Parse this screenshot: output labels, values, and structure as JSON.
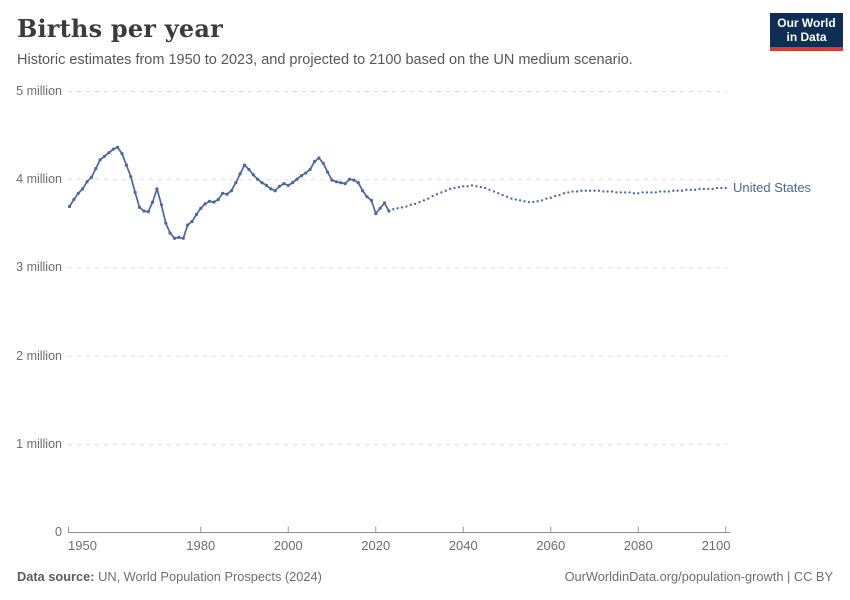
{
  "header": {
    "title": "Births per year",
    "subtitle": "Historic estimates from 1950 to 2023, and projected to 2100 based on the UN medium scenario."
  },
  "logo": {
    "line1": "Our World",
    "line2": "in Data",
    "bg_color": "#0e2e55",
    "accent_color": "#de3a31"
  },
  "chart_data": {
    "type": "line",
    "title": "Births per year",
    "entity": "United States",
    "entity_label": "United States",
    "units": "births per year (millions)",
    "xlim": [
      1950,
      2100
    ],
    "ylim_millions": [
      0,
      5
    ],
    "grid": "horizontal-dashed",
    "legend_position": "right-of-line",
    "y_ticks": [
      {
        "value": 0,
        "label": "0"
      },
      {
        "value": 1,
        "label": "1 million"
      },
      {
        "value": 2,
        "label": "2 million"
      },
      {
        "value": 3,
        "label": "3 million"
      },
      {
        "value": 4,
        "label": "4 million"
      },
      {
        "value": 5,
        "label": "5 million"
      }
    ],
    "x_ticks": [
      {
        "year": 1950,
        "label": "1950",
        "align": "start"
      },
      {
        "year": 1980,
        "label": "1980",
        "align": "middle"
      },
      {
        "year": 2000,
        "label": "2000",
        "align": "middle"
      },
      {
        "year": 2020,
        "label": "2020",
        "align": "middle"
      },
      {
        "year": 2040,
        "label": "2040",
        "align": "middle"
      },
      {
        "year": 2060,
        "label": "2060",
        "align": "middle"
      },
      {
        "year": 2080,
        "label": "2080",
        "align": "middle"
      },
      {
        "year": 2100,
        "label": "2100",
        "align": "end"
      }
    ],
    "series": [
      {
        "name": "United States — historic estimates (1950–2023)",
        "style": "solid-with-markers",
        "color": "#4a67a3",
        "points": [
          [
            1950,
            3.69
          ],
          [
            1951,
            3.77
          ],
          [
            1952,
            3.84
          ],
          [
            1953,
            3.89
          ],
          [
            1954,
            3.97
          ],
          [
            1955,
            4.02
          ],
          [
            1956,
            4.12
          ],
          [
            1957,
            4.22
          ],
          [
            1958,
            4.26
          ],
          [
            1959,
            4.3
          ],
          [
            1960,
            4.34
          ],
          [
            1961,
            4.36
          ],
          [
            1962,
            4.29
          ],
          [
            1963,
            4.16
          ],
          [
            1964,
            4.03
          ],
          [
            1965,
            3.85
          ],
          [
            1966,
            3.68
          ],
          [
            1967,
            3.64
          ],
          [
            1968,
            3.63
          ],
          [
            1969,
            3.74
          ],
          [
            1970,
            3.89
          ],
          [
            1971,
            3.71
          ],
          [
            1972,
            3.5
          ],
          [
            1973,
            3.39
          ],
          [
            1974,
            3.33
          ],
          [
            1975,
            3.34
          ],
          [
            1976,
            3.33
          ],
          [
            1977,
            3.48
          ],
          [
            1978,
            3.52
          ],
          [
            1979,
            3.6
          ],
          [
            1980,
            3.67
          ],
          [
            1981,
            3.72
          ],
          [
            1982,
            3.75
          ],
          [
            1983,
            3.74
          ],
          [
            1984,
            3.77
          ],
          [
            1985,
            3.84
          ],
          [
            1986,
            3.83
          ],
          [
            1987,
            3.87
          ],
          [
            1988,
            3.96
          ],
          [
            1989,
            4.06
          ],
          [
            1990,
            4.16
          ],
          [
            1991,
            4.11
          ],
          [
            1992,
            4.05
          ],
          [
            1993,
            4.0
          ],
          [
            1994,
            3.96
          ],
          [
            1995,
            3.93
          ],
          [
            1996,
            3.89
          ],
          [
            1997,
            3.87
          ],
          [
            1998,
            3.92
          ],
          [
            1999,
            3.95
          ],
          [
            2000,
            3.93
          ],
          [
            2001,
            3.96
          ],
          [
            2002,
            4.0
          ],
          [
            2003,
            4.04
          ],
          [
            2004,
            4.07
          ],
          [
            2005,
            4.11
          ],
          [
            2006,
            4.2
          ],
          [
            2007,
            4.24
          ],
          [
            2008,
            4.18
          ],
          [
            2009,
            4.08
          ],
          [
            2010,
            3.99
          ],
          [
            2011,
            3.97
          ],
          [
            2012,
            3.96
          ],
          [
            2013,
            3.95
          ],
          [
            2014,
            4.0
          ],
          [
            2015,
            3.99
          ],
          [
            2016,
            3.96
          ],
          [
            2017,
            3.87
          ],
          [
            2018,
            3.8
          ],
          [
            2019,
            3.76
          ],
          [
            2020,
            3.61
          ],
          [
            2021,
            3.67
          ],
          [
            2022,
            3.73
          ],
          [
            2023,
            3.64
          ]
        ]
      },
      {
        "name": "United States — UN medium scenario projection (2024–2100)",
        "style": "dotted",
        "color": "#4a67a3",
        "points": [
          [
            2023,
            3.64
          ],
          [
            2024,
            3.66
          ],
          [
            2025,
            3.67
          ],
          [
            2026,
            3.68
          ],
          [
            2027,
            3.69
          ],
          [
            2028,
            3.71
          ],
          [
            2029,
            3.72
          ],
          [
            2030,
            3.74
          ],
          [
            2031,
            3.76
          ],
          [
            2032,
            3.78
          ],
          [
            2033,
            3.81
          ],
          [
            2034,
            3.83
          ],
          [
            2035,
            3.85
          ],
          [
            2036,
            3.87
          ],
          [
            2037,
            3.89
          ],
          [
            2038,
            3.9
          ],
          [
            2039,
            3.91
          ],
          [
            2040,
            3.92
          ],
          [
            2041,
            3.92
          ],
          [
            2042,
            3.93
          ],
          [
            2043,
            3.92
          ],
          [
            2044,
            3.91
          ],
          [
            2045,
            3.9
          ],
          [
            2046,
            3.88
          ],
          [
            2047,
            3.86
          ],
          [
            2048,
            3.84
          ],
          [
            2049,
            3.82
          ],
          [
            2050,
            3.8
          ],
          [
            2051,
            3.78
          ],
          [
            2052,
            3.77
          ],
          [
            2053,
            3.76
          ],
          [
            2054,
            3.75
          ],
          [
            2055,
            3.74
          ],
          [
            2056,
            3.74
          ],
          [
            2057,
            3.75
          ],
          [
            2058,
            3.76
          ],
          [
            2059,
            3.78
          ],
          [
            2060,
            3.79
          ],
          [
            2061,
            3.81
          ],
          [
            2062,
            3.82
          ],
          [
            2063,
            3.84
          ],
          [
            2064,
            3.85
          ],
          [
            2065,
            3.86
          ],
          [
            2066,
            3.86
          ],
          [
            2067,
            3.87
          ],
          [
            2068,
            3.87
          ],
          [
            2069,
            3.87
          ],
          [
            2070,
            3.87
          ],
          [
            2071,
            3.87
          ],
          [
            2072,
            3.86
          ],
          [
            2073,
            3.86
          ],
          [
            2074,
            3.86
          ],
          [
            2075,
            3.85
          ],
          [
            2076,
            3.85
          ],
          [
            2077,
            3.85
          ],
          [
            2078,
            3.85
          ],
          [
            2079,
            3.84
          ],
          [
            2080,
            3.84
          ],
          [
            2081,
            3.85
          ],
          [
            2082,
            3.85
          ],
          [
            2083,
            3.85
          ],
          [
            2084,
            3.85
          ],
          [
            2085,
            3.86
          ],
          [
            2086,
            3.86
          ],
          [
            2087,
            3.86
          ],
          [
            2088,
            3.87
          ],
          [
            2089,
            3.87
          ],
          [
            2090,
            3.87
          ],
          [
            2091,
            3.88
          ],
          [
            2092,
            3.88
          ],
          [
            2093,
            3.88
          ],
          [
            2094,
            3.89
          ],
          [
            2095,
            3.89
          ],
          [
            2096,
            3.89
          ],
          [
            2097,
            3.89
          ],
          [
            2098,
            3.9
          ],
          [
            2099,
            3.9
          ],
          [
            2100,
            3.9
          ]
        ]
      }
    ]
  },
  "colors": {
    "line": "#4a67a3",
    "grid": "#dbdbdb",
    "axis": "#8f8f8f",
    "tick": "#9a9a9a",
    "tick_label": "#6d6d6d"
  },
  "footer": {
    "source_label": "Data source:",
    "source_text": " UN, World Population Prospects (2024)",
    "link_text": "OurWorldinData.org/population-growth | CC BY"
  }
}
